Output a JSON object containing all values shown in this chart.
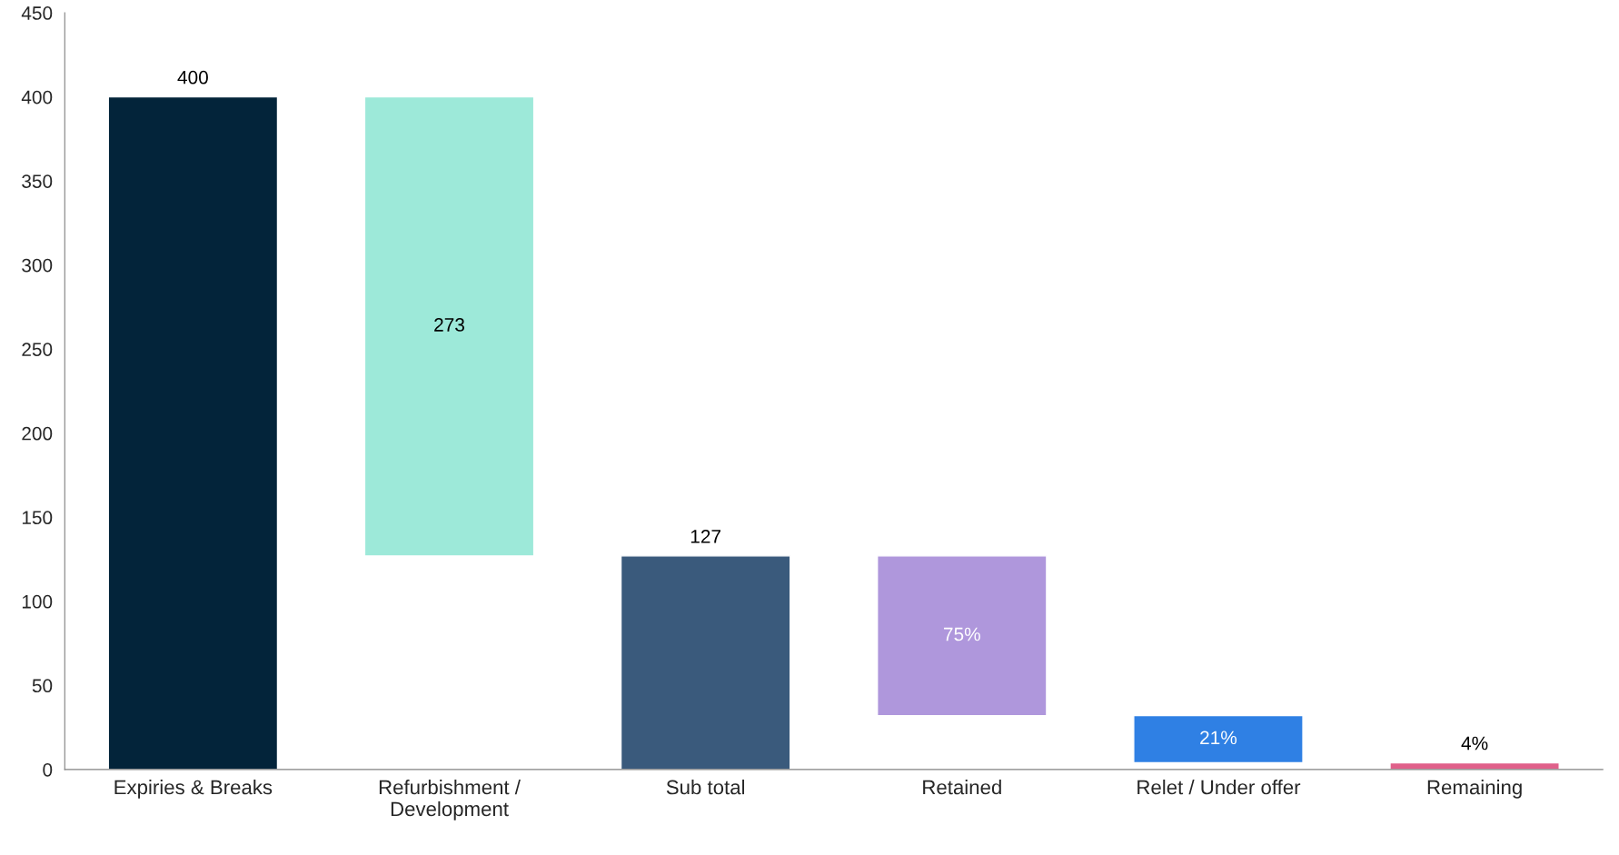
{
  "chart_data": {
    "type": "bar",
    "categories": [
      "Expiries & Breaks",
      "Refurbishment /\nDevelopment",
      "Sub total",
      "Retained",
      "Relet / Under offer",
      "Remaining"
    ],
    "values": [
      400,
      273,
      127,
      95,
      28,
      4
    ],
    "base": [
      0,
      127,
      0,
      32,
      4,
      0
    ],
    "colors": [
      "#03243a",
      "#9de9d9",
      "#3a5a7c",
      "#af97dc",
      "#2f80e4",
      "#e0608a"
    ],
    "value_labels": [
      "400",
      "273",
      "127",
      null,
      null,
      null
    ],
    "annotations": [
      "75%",
      "21%",
      "4%"
    ],
    "ylim": [
      0,
      450
    ],
    "yticks": [
      0,
      50,
      100,
      150,
      200,
      250,
      300,
      350,
      400,
      450
    ],
    "grid": false,
    "legend": false
  }
}
